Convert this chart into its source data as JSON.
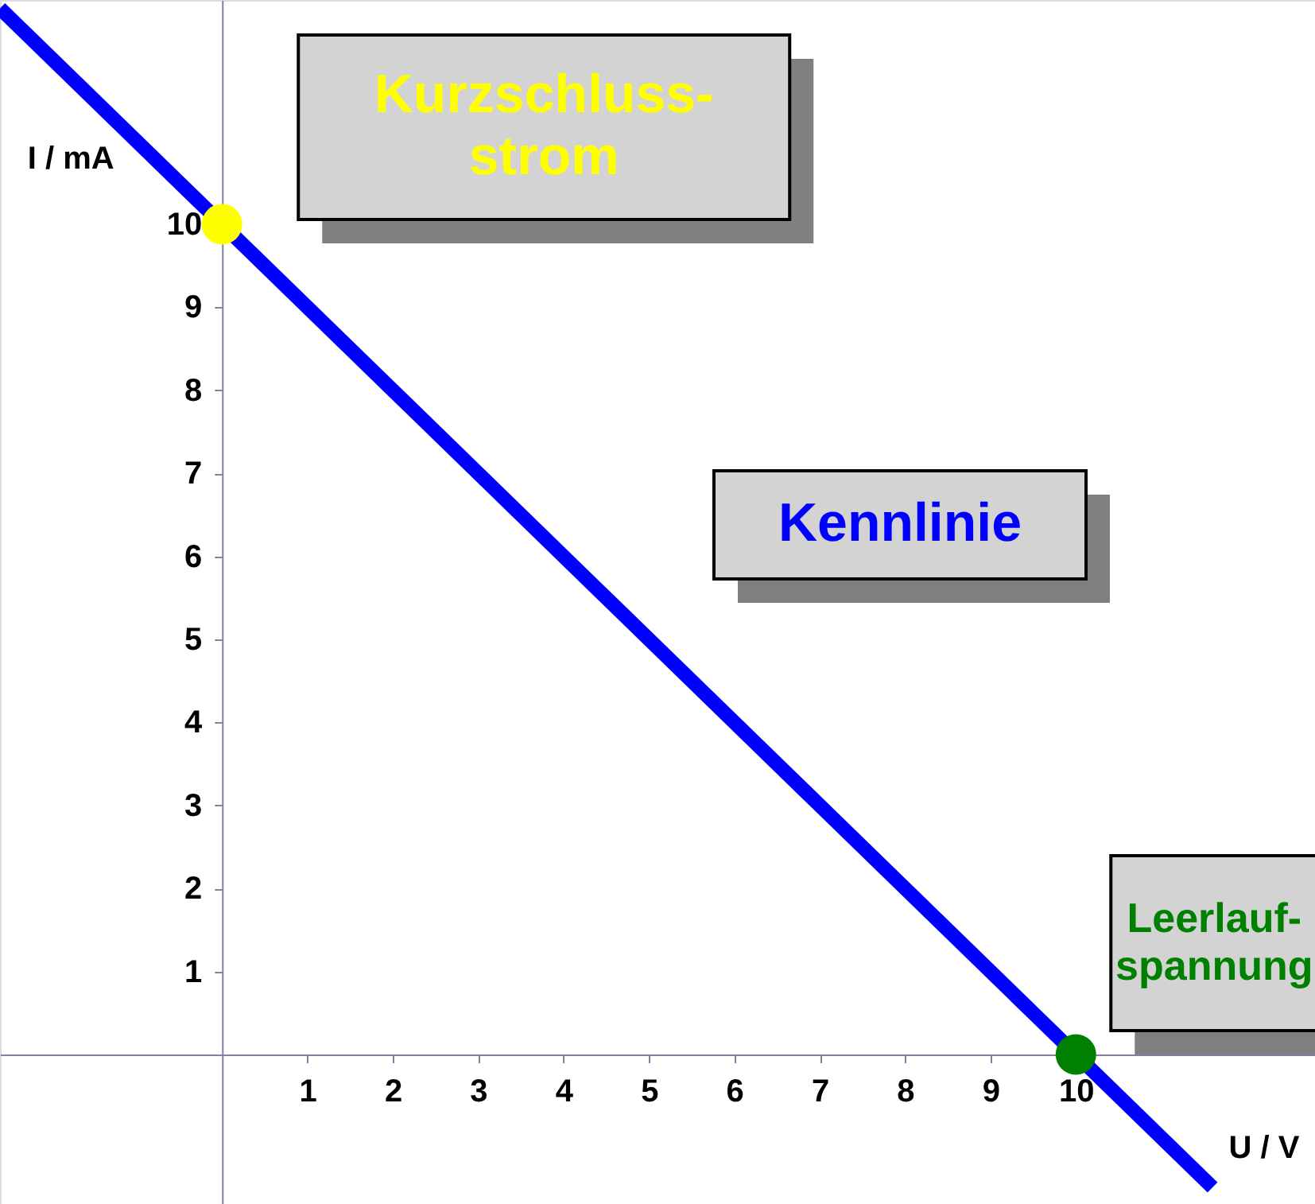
{
  "chart_data": {
    "type": "line",
    "xlabel": "U / V",
    "ylabel": "I / mA",
    "series": [
      {
        "color": "#0000ff",
        "x": [
          -2.6,
          11.6
        ],
        "values": [
          12.6,
          -1.6
        ],
        "line_style": "solid"
      },
      {
        "type": "scatter",
        "color": "#ffff00",
        "x": [
          0
        ],
        "values": [
          10
        ],
        "marker": "circle"
      },
      {
        "type": "scatter",
        "color": "#008000",
        "x": [
          10
        ],
        "values": [
          0
        ],
        "marker": "circle"
      }
    ],
    "xlim": [
      -2.6,
      12.8
    ],
    "ylim": [
      -1.8,
      12.7
    ],
    "xticks": [
      1,
      2,
      3,
      4,
      5,
      6,
      7,
      8,
      9,
      10
    ],
    "yticks": [
      1,
      2,
      3,
      4,
      5,
      6,
      7,
      8,
      9,
      10
    ],
    "grid": false,
    "annotations": [
      {
        "text": "Kurzschluss-strom",
        "x": 0,
        "y": 10
      },
      "Kennlinie",
      {
        "text": "Leerlauf-spannung",
        "x": 10,
        "y": 0
      }
    ]
  }
}
